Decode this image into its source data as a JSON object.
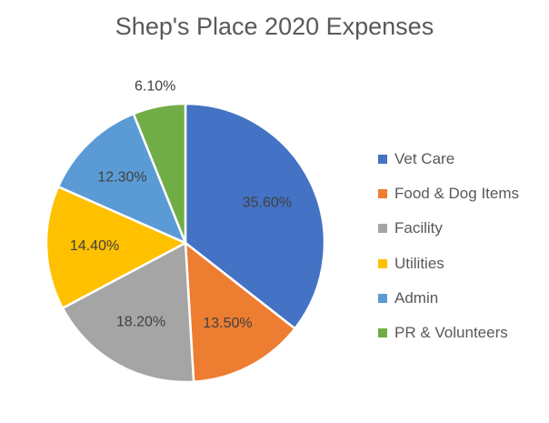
{
  "chart_data": {
    "type": "pie",
    "title": "Shep's Place 2020 Expenses",
    "categories": [
      "Vet Care",
      "Food & Dog Items",
      "Facility",
      "Utilities",
      "Admin",
      "PR & Volunteers"
    ],
    "values": [
      35.6,
      13.5,
      18.2,
      14.4,
      12.3,
      6.1
    ],
    "data_labels": [
      "35.60%",
      "13.50%",
      "18.20%",
      "14.40%",
      "12.30%",
      "6.10%"
    ],
    "colors": [
      "#4472C4",
      "#ED7D31",
      "#A5A5A5",
      "#FFC000",
      "#5B9BD5",
      "#70AD47"
    ],
    "legend_position": "right",
    "start_angle": "12 o'clock",
    "direction": "clockwise"
  }
}
